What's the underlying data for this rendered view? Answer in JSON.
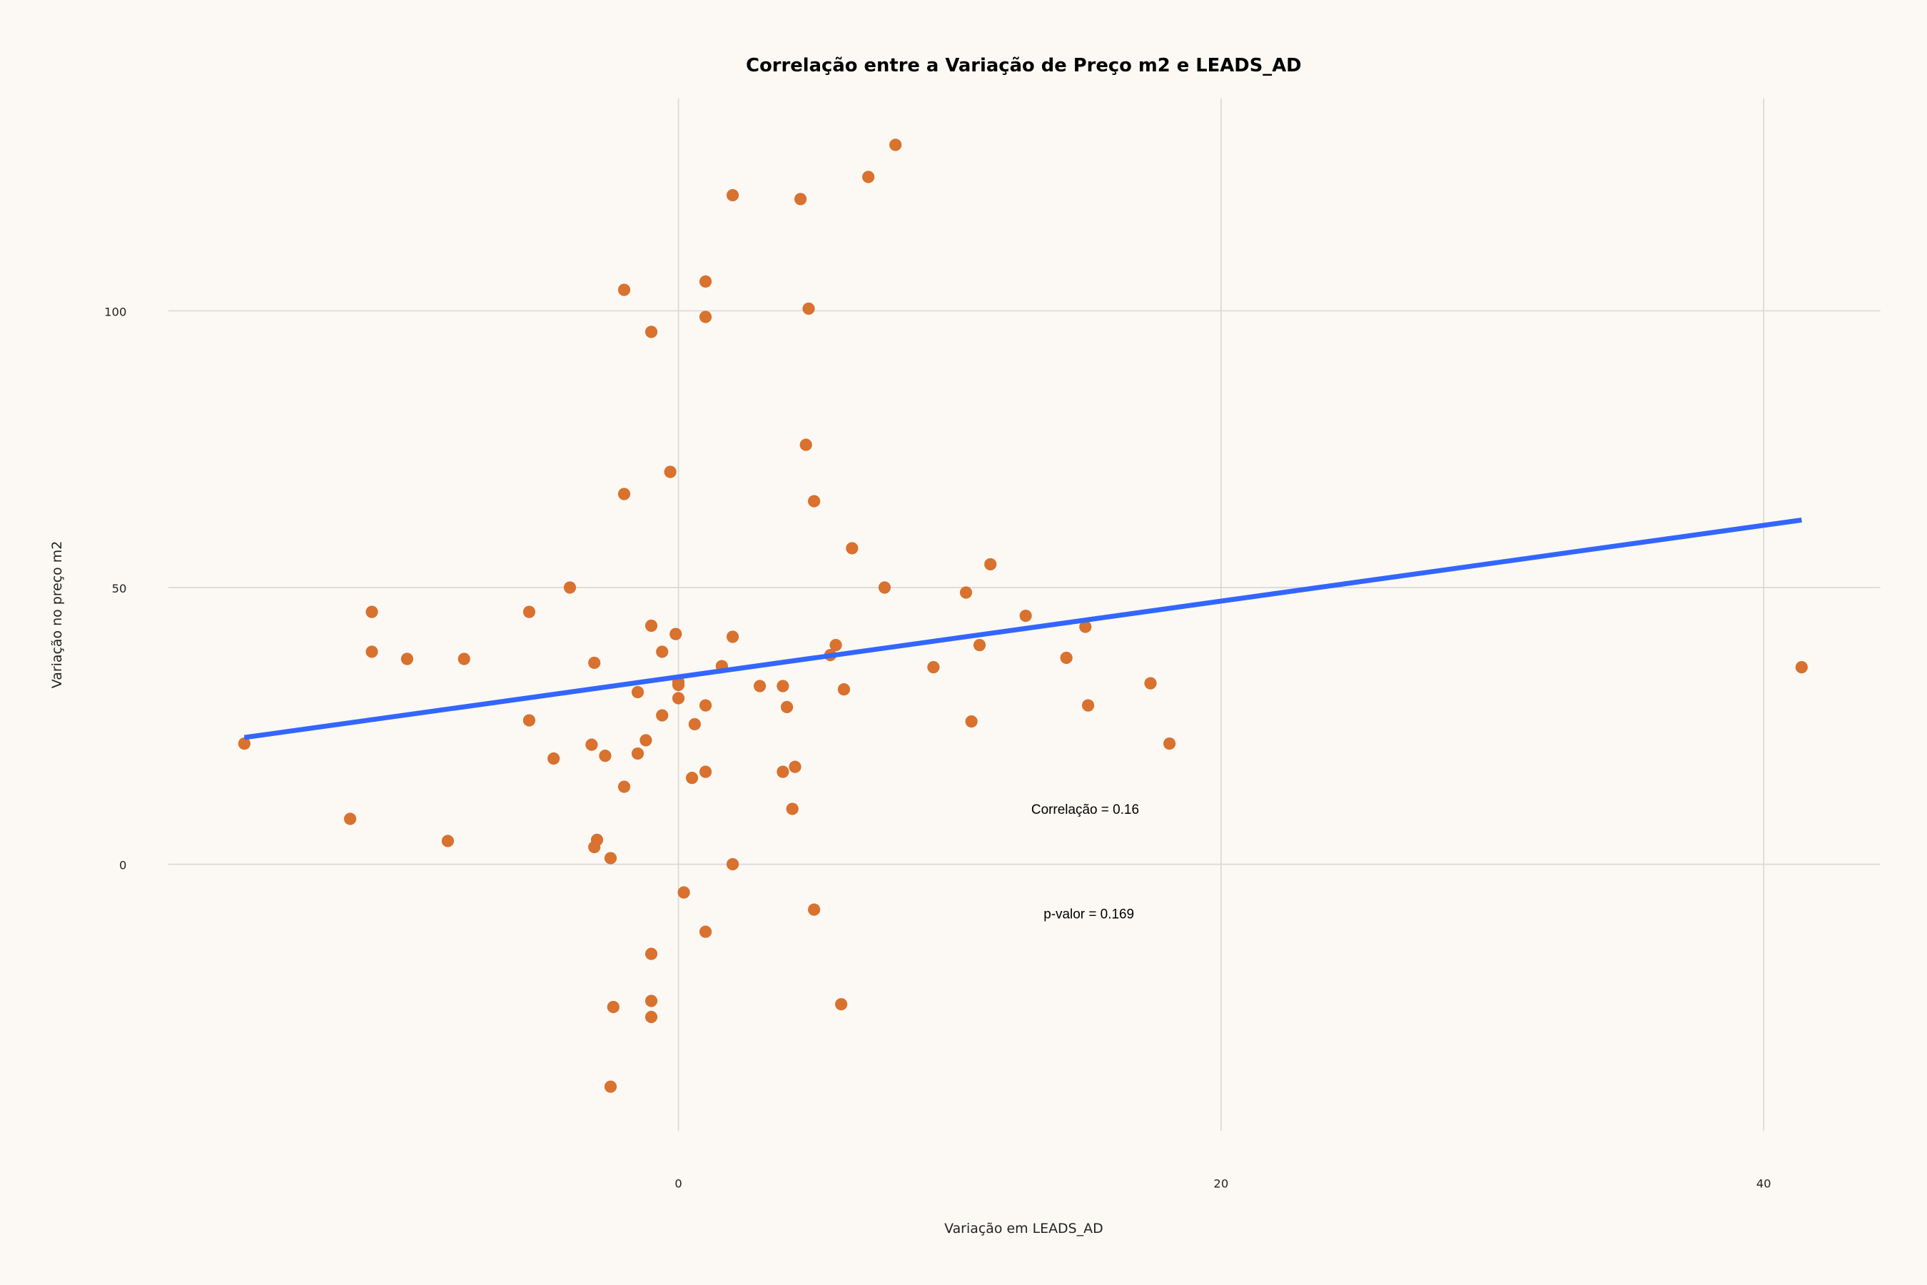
{
  "chart_data": {
    "type": "scatter",
    "title": "Correlação entre a Variação de Preço m2 e LEADS_AD",
    "xlabel": "Variação em LEADS_AD",
    "ylabel": "Variação no preço m2",
    "xlim": [
      -18.8,
      44.3
    ],
    "ylim": [
      -48.2,
      138.4
    ],
    "xticks": [
      "0",
      "20",
      "40"
    ],
    "yticks": [
      "0",
      "50",
      "100"
    ],
    "grid": true,
    "colors": {
      "background": "#fcf9f4",
      "points": "#d9712f",
      "fit_line": "#3366ff",
      "grid": "#d9d9d9"
    },
    "points": [
      [
        -16.0,
        21.8
      ],
      [
        -12.1,
        8.2
      ],
      [
        -11.3,
        45.6
      ],
      [
        -11.3,
        38.4
      ],
      [
        -10.0,
        37.1
      ],
      [
        -8.5,
        4.2
      ],
      [
        -7.9,
        37.1
      ],
      [
        -5.5,
        45.6
      ],
      [
        -5.5,
        26.0
      ],
      [
        -4.6,
        19.1
      ],
      [
        -4.0,
        50.0
      ],
      [
        -3.2,
        21.6
      ],
      [
        -3.1,
        36.4
      ],
      [
        -3.0,
        4.4
      ],
      [
        -3.1,
        3.1
      ],
      [
        -2.7,
        19.6
      ],
      [
        -2.5,
        1.1
      ],
      [
        -2.4,
        -25.8
      ],
      [
        -2.5,
        -40.2
      ],
      [
        -2.0,
        103.8
      ],
      [
        -2.0,
        66.9
      ],
      [
        -2.0,
        14.0
      ],
      [
        -1.5,
        31.1
      ],
      [
        -1.5,
        20.0
      ],
      [
        -1.2,
        22.4
      ],
      [
        -1.0,
        96.2
      ],
      [
        -1.0,
        43.1
      ],
      [
        -1.0,
        -16.2
      ],
      [
        -1.0,
        -24.7
      ],
      [
        -1.0,
        -27.6
      ],
      [
        -0.6,
        38.4
      ],
      [
        -0.6,
        26.9
      ],
      [
        -0.3,
        70.9
      ],
      [
        -0.1,
        41.6
      ],
      [
        0.0,
        32.4
      ],
      [
        0.0,
        32.9
      ],
      [
        0.0,
        30.0
      ],
      [
        0.2,
        -5.1
      ],
      [
        0.5,
        15.6
      ],
      [
        0.6,
        25.3
      ],
      [
        1.0,
        105.3
      ],
      [
        1.0,
        98.9
      ],
      [
        1.0,
        28.7
      ],
      [
        1.0,
        16.7
      ],
      [
        1.0,
        -12.2
      ],
      [
        1.6,
        35.8
      ],
      [
        2.0,
        120.9
      ],
      [
        2.0,
        41.1
      ],
      [
        2.0,
        0.0
      ],
      [
        3.0,
        32.2
      ],
      [
        3.85,
        32.2
      ],
      [
        3.85,
        16.7
      ],
      [
        4.0,
        28.4
      ],
      [
        4.2,
        10.0
      ],
      [
        4.3,
        17.6
      ],
      [
        4.5,
        120.2
      ],
      [
        4.7,
        75.8
      ],
      [
        4.8,
        100.4
      ],
      [
        5.0,
        65.6
      ],
      [
        5.0,
        -8.2
      ],
      [
        5.6,
        37.8
      ],
      [
        5.8,
        39.6
      ],
      [
        6.0,
        -25.3
      ],
      [
        6.1,
        31.6
      ],
      [
        6.4,
        57.1
      ],
      [
        7.0,
        124.2
      ],
      [
        7.6,
        50.0
      ],
      [
        8.0,
        130.0
      ],
      [
        9.4,
        35.6
      ],
      [
        10.6,
        49.1
      ],
      [
        10.8,
        25.8
      ],
      [
        11.1,
        39.6
      ],
      [
        11.5,
        54.2
      ],
      [
        12.8,
        44.9
      ],
      [
        14.3,
        37.3
      ],
      [
        15.0,
        42.9
      ],
      [
        15.1,
        28.7
      ],
      [
        17.4,
        32.7
      ],
      [
        18.1,
        21.8
      ],
      [
        41.4,
        35.6
      ]
    ],
    "fit_line": {
      "x": [
        -16.0,
        41.4
      ],
      "y": [
        22.9,
        62.2
      ]
    },
    "annotations": [
      "Correlação =  0.16",
      "p-valor =  0.169"
    ]
  }
}
